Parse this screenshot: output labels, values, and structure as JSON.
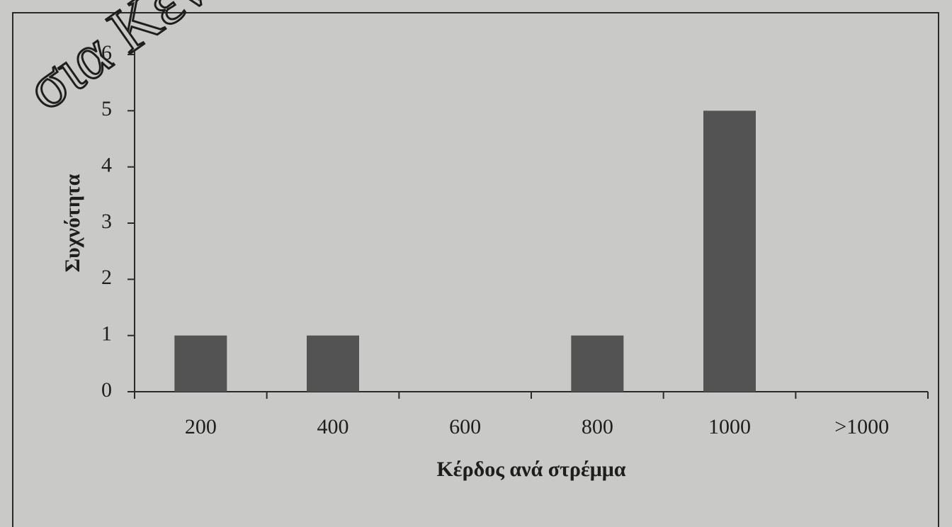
{
  "watermark": "σια Κεν",
  "chart_data": {
    "type": "bar",
    "categories": [
      "200",
      "400",
      "600",
      "800",
      "1000",
      ">1000"
    ],
    "values": [
      1,
      1,
      0,
      1,
      5,
      0
    ],
    "color": "#535353",
    "ylim": [
      0,
      6
    ],
    "yticks": [
      0,
      1,
      2,
      3,
      4,
      5,
      6
    ],
    "ylabel": "Συχνότητα",
    "xlabel": "Κέρδος ανά στρέμμα"
  }
}
